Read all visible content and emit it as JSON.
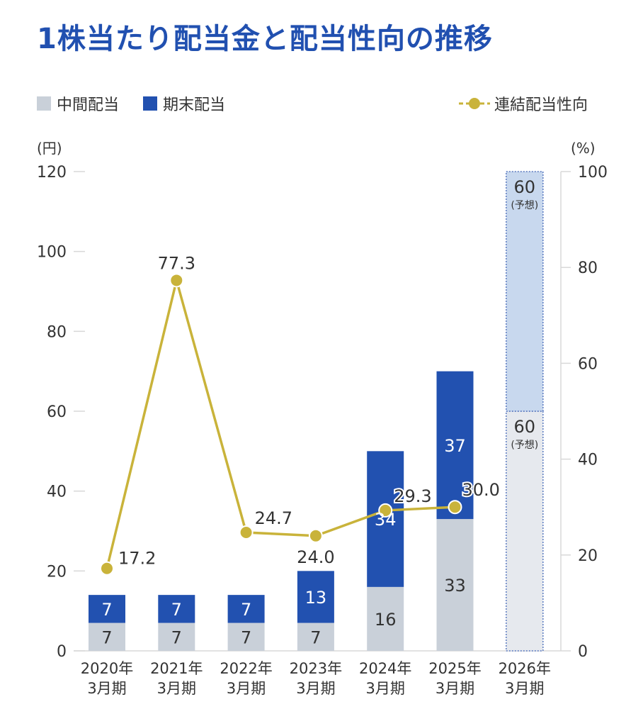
{
  "title": "1株当たり配当金と配当性向の推移",
  "legend": {
    "interim": "中間配当",
    "yearend": "期末配当",
    "payout": "連結配当性向"
  },
  "colors": {
    "interim": "#c9d0d9",
    "yearend": "#2251b0",
    "forecast_interim": "#e6e9ee",
    "forecast_yearend": "#c8d8ee",
    "forecast_border": "#5a7ac0",
    "payout": "#c9b33a",
    "title": "#2150b0",
    "text": "#333333",
    "grid": "#d8d8d8"
  },
  "chart_data": {
    "type": "bar",
    "title": "1株当たり配当金と配当性向の推移",
    "left_axis_label": "(円)",
    "right_axis_label": "(%)",
    "left_ylim": [
      0,
      120
    ],
    "right_ylim": [
      0,
      100
    ],
    "left_ticks": [
      "0",
      "20",
      "40",
      "60",
      "80",
      "100",
      "120"
    ],
    "right_ticks": [
      "0",
      "20",
      "40",
      "60",
      "80",
      "100"
    ],
    "categories": [
      {
        "year": "2020年",
        "period": "3月期"
      },
      {
        "year": "2021年",
        "period": "3月期"
      },
      {
        "year": "2022年",
        "period": "3月期"
      },
      {
        "year": "2023年",
        "period": "3月期"
      },
      {
        "year": "2024年",
        "period": "3月期"
      },
      {
        "year": "2025年",
        "period": "3月期"
      },
      {
        "year": "2026年",
        "period": "3月期"
      }
    ],
    "series": [
      {
        "name": "中間配当",
        "values": [
          7,
          7,
          7,
          7,
          16,
          33,
          60
        ]
      },
      {
        "name": "期末配当",
        "values": [
          7,
          7,
          7,
          13,
          34,
          37,
          60
        ]
      }
    ],
    "forecast_index": 6,
    "forecast_note": "(予想)",
    "payout_ratio": {
      "name": "連結配当性向",
      "values": [
        17.2,
        77.3,
        24.7,
        24.0,
        29.3,
        30.0
      ],
      "labels": [
        "17.2",
        "77.3",
        "24.7",
        "24.0",
        "29.3",
        "30.0"
      ]
    }
  }
}
